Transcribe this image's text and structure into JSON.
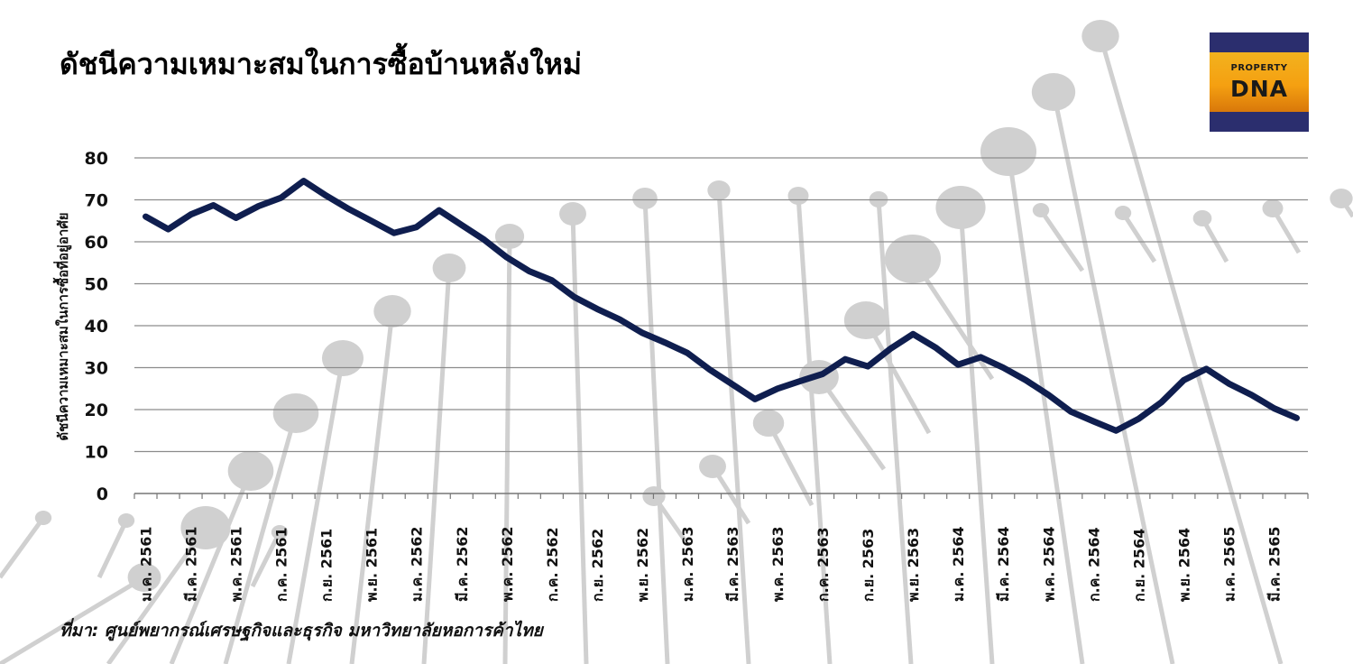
{
  "title": "ดัชนีความเหมาะสมในการซื้อบ้านหลังใหม่",
  "source": "ที่มา: ศูนย์พยากรณ์เศรษฐกิจและธุรกิจ มหาวิทยาลัยหอการค้าไทย",
  "logo": {
    "line1": "PROPERTY",
    "line2": "DNA"
  },
  "colors": {
    "line": "#0f1e4f",
    "grid": "#8c8c8c",
    "decor": "#d0d0d0"
  },
  "chart_data": {
    "type": "line",
    "title": "ดัชนีความเหมาะสมในการซื้อบ้านหลังใหม่",
    "ylabel": "ดัชนีความเหมาะสมในการซื้อที่อยู่อาศัย",
    "xlabel": "",
    "ylim": [
      0,
      80
    ],
    "yticks": [
      0,
      10,
      20,
      30,
      40,
      50,
      60,
      70,
      80
    ],
    "grid": true,
    "legend": "none",
    "x_tick_labels": [
      "ม.ค. 2561",
      "มี.ค. 2561",
      "พ.ค. 2561",
      "ก.ค. 2561",
      "ก.ย. 2561",
      "พ.ย. 2561",
      "ม.ค. 2562",
      "มี.ค. 2562",
      "พ.ค. 2562",
      "ก.ค. 2562",
      "ก.ย. 2562",
      "พ.ย. 2562",
      "ม.ค. 2563",
      "มี.ค. 2563",
      "พ.ค. 2563",
      "ก.ค. 2563",
      "ก.ย. 2563",
      "พ.ย. 2563",
      "ม.ค. 2564",
      "มี.ค. 2564",
      "พ.ค. 2564",
      "ก.ค. 2564",
      "ก.ย. 2564",
      "พ.ย. 2564",
      "ม.ค. 2565",
      "มี.ค. 2565"
    ],
    "series": [
      {
        "values": [
          66.0,
          63.0,
          66.5,
          68.7,
          65.7,
          68.5,
          70.5,
          74.5,
          71.0,
          67.8,
          65.0,
          62.1,
          63.5,
          67.5,
          64.0,
          60.5,
          56.3,
          53.0,
          50.8,
          46.8,
          44.0,
          41.5,
          38.3,
          36.0,
          33.5,
          29.5,
          26.0,
          22.5,
          25.0,
          26.8,
          28.5,
          32.0,
          30.3,
          34.5,
          38.0,
          34.8,
          30.7,
          32.5,
          30.0,
          27.0,
          23.5,
          19.5,
          17.2,
          15.0,
          17.8,
          21.7,
          27.0,
          29.7,
          26.2,
          23.5,
          20.3,
          18.0
        ]
      }
    ]
  }
}
